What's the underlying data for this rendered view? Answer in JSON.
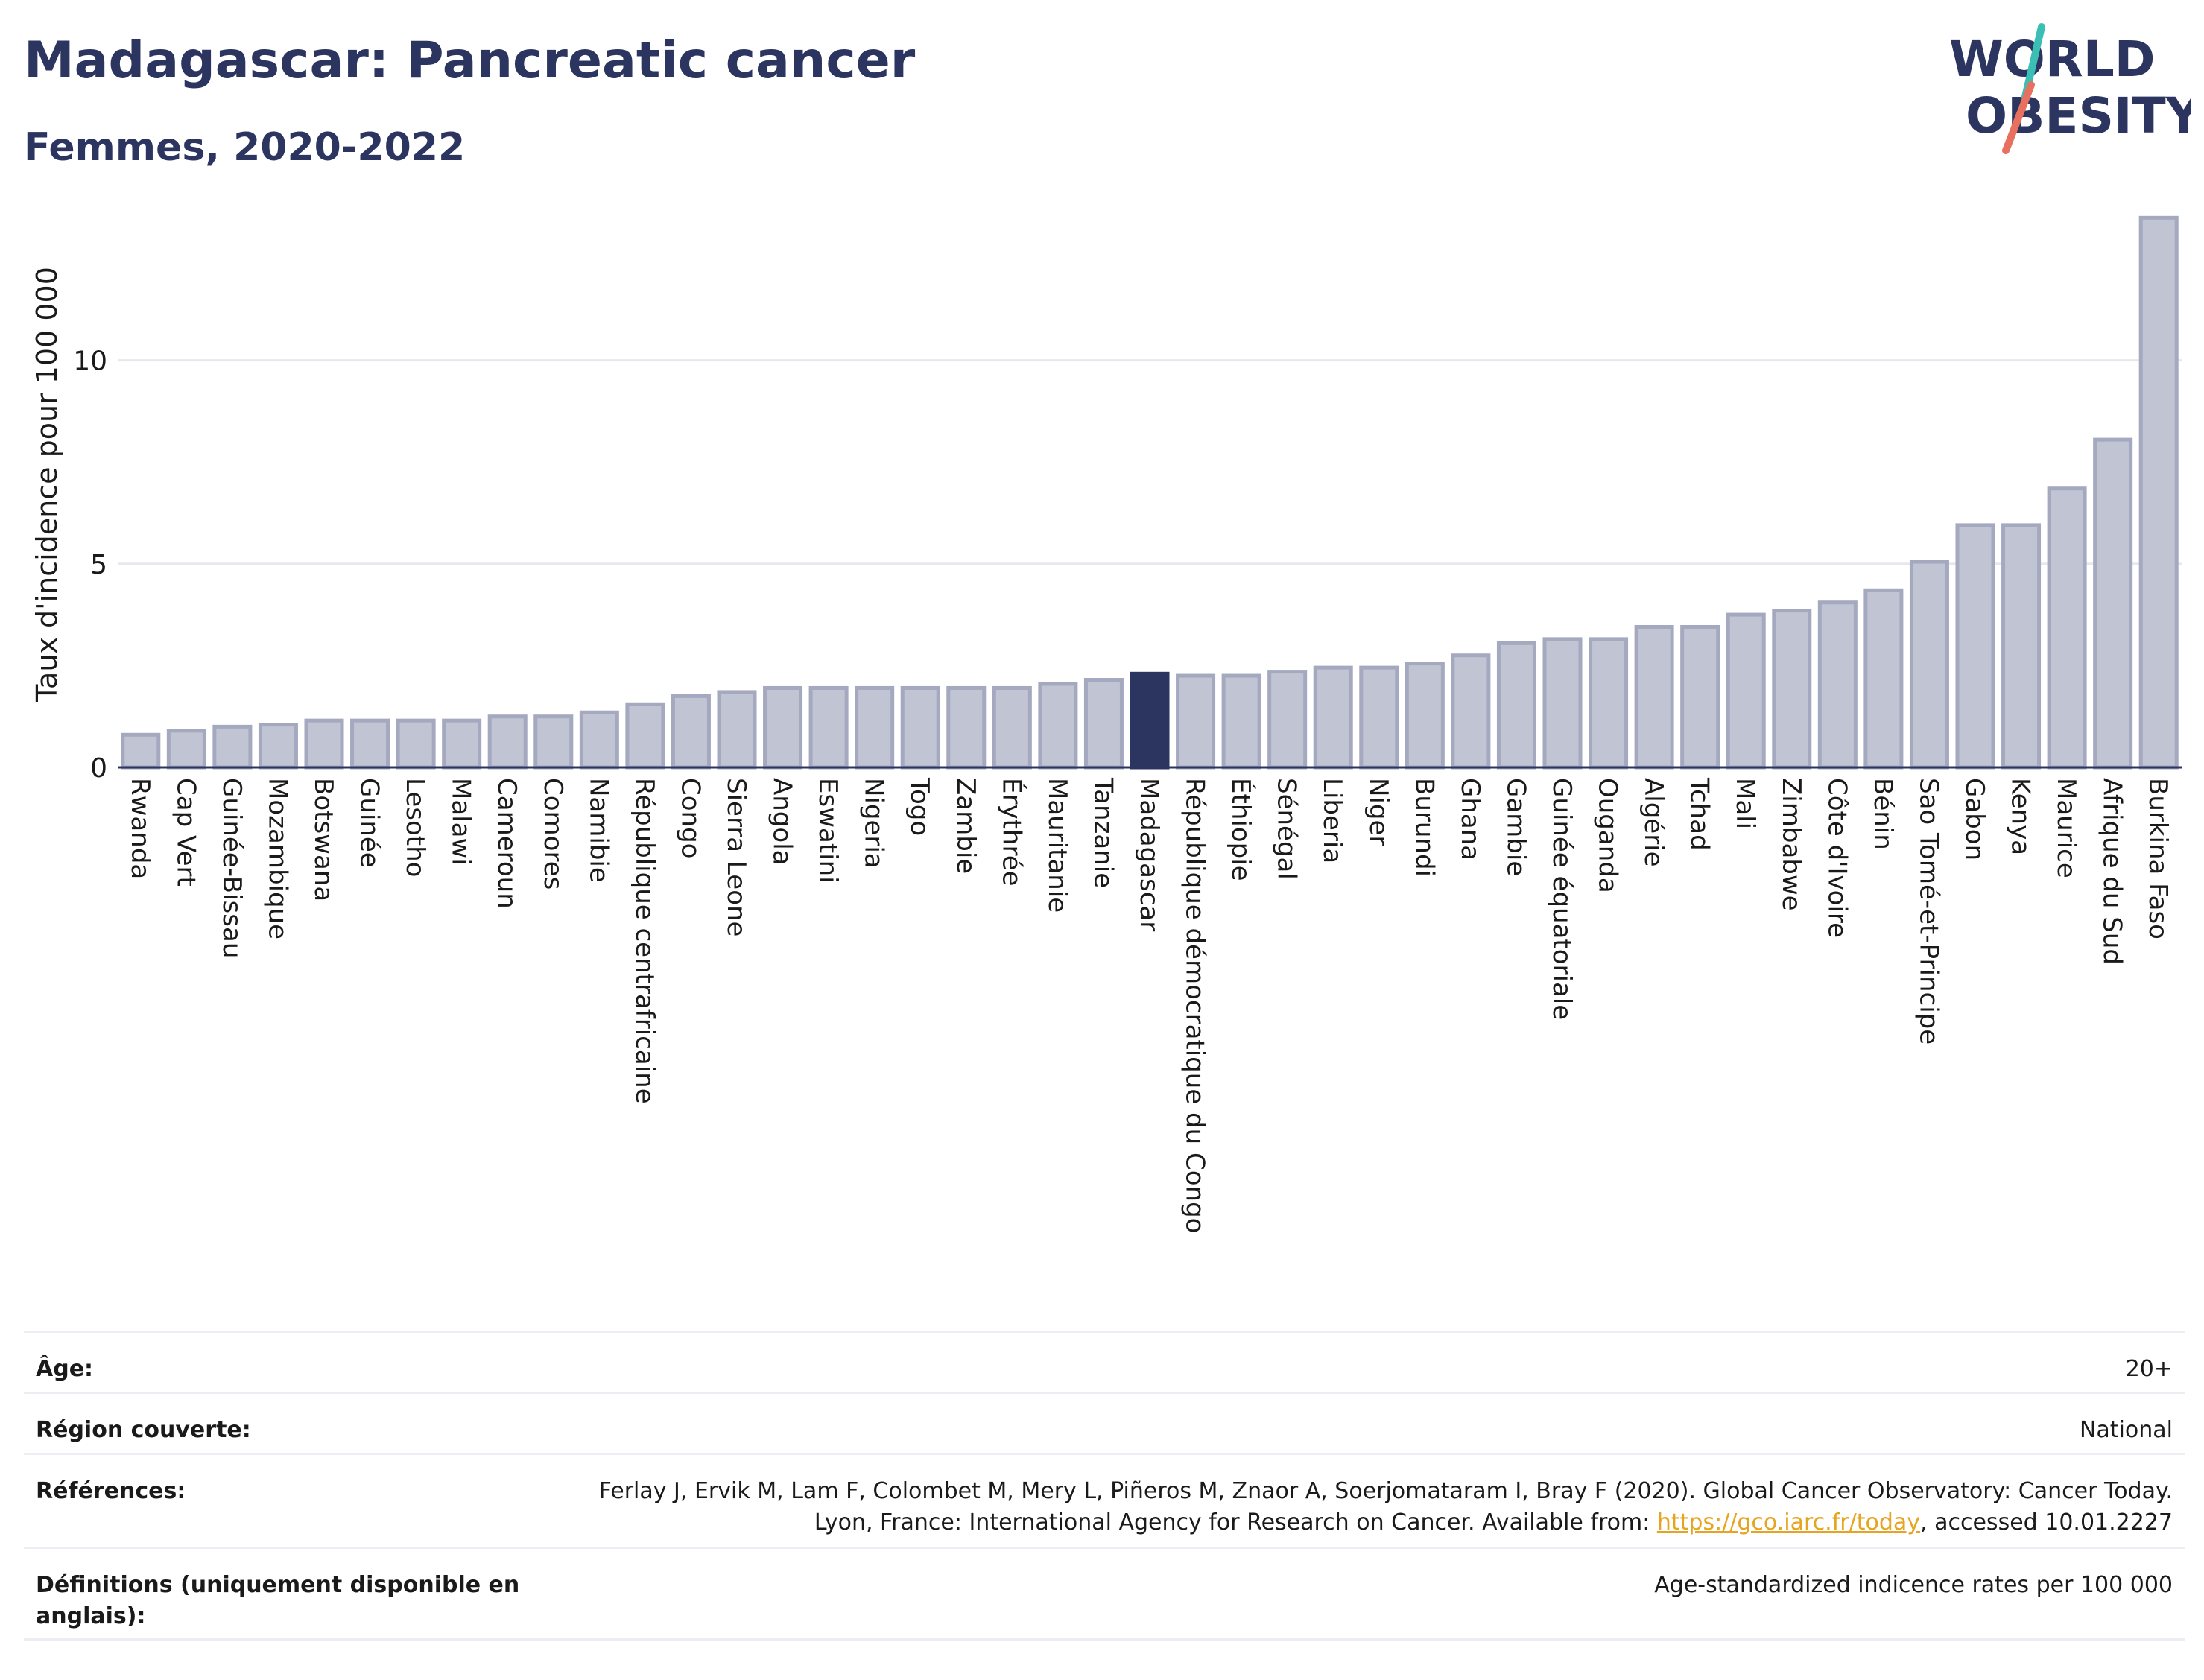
{
  "header": {
    "title": "Madagascar: Pancreatic cancer",
    "subtitle": "Femmes, 2020-2022"
  },
  "logo": {
    "line1": "WORLD",
    "line2": "OBESITY",
    "colors": {
      "text": "#2b3560",
      "slash_teal": "#3bbfb4",
      "slash_coral": "#e8705e"
    }
  },
  "chart_data": {
    "type": "bar",
    "ylabel": "Taux d'incidence pour 100 000",
    "xlabel": "",
    "ylim": [
      0,
      14
    ],
    "yticks": [
      0,
      5,
      10
    ],
    "grid": true,
    "highlight": "Madagascar",
    "colors": {
      "bar": "#c0c4d3",
      "bar_edge": "#a4a9c0",
      "highlight": "#2b3560",
      "grid": "#e6e8ee"
    },
    "categories": [
      "Rwanda",
      "Cap Vert",
      "Guinée-Bissau",
      "Mozambique",
      "Botswana",
      "Guinée",
      "Lesotho",
      "Malawi",
      "Cameroun",
      "Comores",
      "Namibie",
      "République centrafricaine",
      "Congo",
      "Sierra Leone",
      "Angola",
      "Eswatini",
      "Nigeria",
      "Togo",
      "Zambie",
      "Érythrée",
      "Mauritanie",
      "Tanzanie",
      "Madagascar",
      "République démocratique du Congo",
      "Éthiopie",
      "Sénégal",
      "Liberia",
      "Niger",
      "Burundi",
      "Ghana",
      "Gambie",
      "Guinée équatoriale",
      "Ouganda",
      "Algérie",
      "Tchad",
      "Mali",
      "Zimbabwe",
      "Côte d'Ivoire",
      "Bénin",
      "Sao Tomé-et-Principe",
      "Gabon",
      "Kenya",
      "Maurice",
      "Afrique du Sud",
      "Burkina Faso"
    ],
    "values": [
      0.8,
      0.9,
      1.0,
      1.05,
      1.15,
      1.15,
      1.15,
      1.15,
      1.25,
      1.25,
      1.35,
      1.55,
      1.75,
      1.85,
      1.95,
      1.95,
      1.95,
      1.95,
      1.95,
      1.95,
      2.05,
      2.15,
      2.3,
      2.25,
      2.25,
      2.35,
      2.45,
      2.45,
      2.55,
      2.75,
      3.05,
      3.15,
      3.15,
      3.45,
      3.45,
      3.75,
      3.85,
      4.05,
      4.35,
      5.05,
      5.95,
      5.95,
      6.85,
      8.05,
      13.5
    ]
  },
  "info": {
    "rows": [
      {
        "label": "Âge:",
        "value": "20+"
      },
      {
        "label": "Région couverte:",
        "value": "National"
      },
      {
        "label": "Références:",
        "value_before": "Ferlay J, Ervik M, Lam F, Colombet M, Mery L, Piñeros M, Znaor A, Soerjomataram I, Bray F (2020). Global Cancer Observatory: Cancer Today. Lyon, France: International Agency for Research on Cancer. Available from: ",
        "link": "https://gco.iarc.fr/today",
        "value_after": ", accessed 10.01.2227"
      },
      {
        "label": "Définitions (uniquement disponible en anglais):",
        "value": "Age-standardized indicence rates per 100 000"
      }
    ]
  }
}
